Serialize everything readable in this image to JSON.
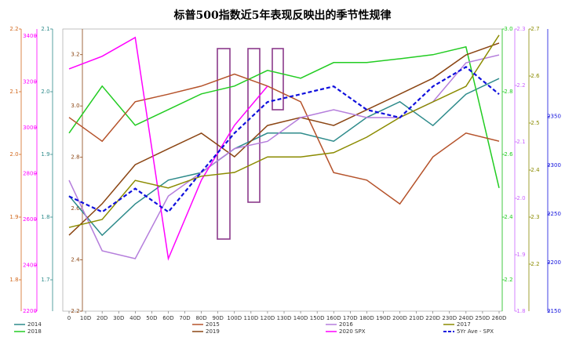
{
  "chart_data": {
    "type": "line",
    "title": "标普500指数近5年表现反映出的季节性规律",
    "x": [
      0,
      20,
      40,
      60,
      80,
      100,
      120,
      140,
      160,
      180,
      200,
      220,
      240,
      260
    ],
    "xlim": [
      0,
      260
    ],
    "xticks": [
      0,
      {
        "value": 10,
        "label": "10D"
      },
      {
        "value": 20,
        "label": "20D"
      },
      {
        "value": 30,
        "label": "30D"
      },
      {
        "value": 40,
        "label": "40D"
      },
      {
        "value": 50,
        "label": "50D"
      },
      {
        "value": 60,
        "label": "60D"
      },
      {
        "value": 70,
        "label": "70D"
      },
      {
        "value": 80,
        "label": "80D"
      },
      {
        "value": 90,
        "label": "90D"
      },
      {
        "value": 100,
        "label": "100D"
      },
      {
        "value": 110,
        "label": "110D"
      },
      {
        "value": 120,
        "label": "120D"
      },
      {
        "value": 130,
        "label": "130D"
      },
      {
        "value": 140,
        "label": "140D"
      },
      {
        "value": 150,
        "label": "150D"
      },
      {
        "value": 160,
        "label": "160D"
      },
      {
        "value": 170,
        "label": "170D"
      },
      {
        "value": 180,
        "label": "180D"
      },
      {
        "value": 190,
        "label": "190D"
      },
      {
        "value": 200,
        "label": "200D"
      },
      {
        "value": 210,
        "label": "210D"
      },
      {
        "value": 220,
        "label": "220D"
      },
      {
        "value": 230,
        "label": "230D"
      },
      {
        "value": 240,
        "label": "240D"
      },
      {
        "value": 250,
        "label": "250D"
      },
      {
        "value": 260,
        "label": "260D"
      }
    ],
    "axes": [
      {
        "side": "left",
        "color": "#d2691e",
        "ylim": [
          1.75,
          2.2
        ],
        "yticks": [
          1.8,
          1.9,
          {
            "value": 2,
            "label": "2.0"
          },
          2.1,
          2.2
        ]
      },
      {
        "side": "left",
        "color": "#ff00ff",
        "ylim": [
          2200,
          3430
        ],
        "yticks": [
          2200,
          2400,
          2600,
          2800,
          3000,
          3200,
          3400
        ]
      },
      {
        "side": "left",
        "color": "#2e8b8b",
        "ylim": [
          1.65,
          2.1
        ],
        "yticks": [
          1.7,
          1.8,
          1.9,
          {
            "value": 2,
            "label": "2.0"
          },
          2.1
        ]
      },
      {
        "side": "left",
        "color": "#8b4513",
        "ylim": [
          2.2,
          3.3
        ],
        "yticks": [
          2.2,
          2.4,
          2.6,
          2.8,
          {
            "value": 3,
            "label": "3.0"
          },
          3.2
        ]
      },
      {
        "side": "right",
        "color": "#22cc22",
        "ylim": [
          2.1,
          3.0
        ],
        "yticks": [
          2.2,
          2.4,
          2.6,
          2.8,
          {
            "value": 3,
            "label": "3.0"
          }
        ]
      },
      {
        "side": "right",
        "color": "#cc66ff",
        "ylim": [
          1.8,
          2.3
        ],
        "yticks": [
          1.8,
          1.9,
          {
            "value": 2,
            "label": "2.0"
          },
          2.1,
          2.2,
          2.3
        ]
      },
      {
        "side": "right",
        "color": "#8b8b00",
        "ylim": [
          2.1,
          2.7
        ],
        "yticks": [
          2.2,
          2.3,
          2.4,
          2.5,
          2.6,
          2.7
        ]
      },
      {
        "side": "right",
        "color": "#1010dd",
        "ylim": [
          2150,
          2440
        ],
        "yticks": [
          2150,
          2200,
          2250,
          2300,
          2350
        ]
      }
    ],
    "series": [
      {
        "name": "2014",
        "color": "#2e8b8b",
        "axis": 2,
        "values": [
          1.834,
          1.771,
          1.821,
          1.859,
          1.871,
          1.909,
          1.934,
          1.934,
          1.921,
          1.959,
          1.984,
          1.946,
          1.996,
          2.021
        ]
      },
      {
        "name": "2018",
        "color": "#22cc22",
        "axis": 4,
        "values": [
          2.668,
          2.818,
          2.693,
          2.743,
          2.793,
          2.818,
          2.868,
          2.843,
          2.893,
          2.893,
          2.905,
          2.918,
          2.943,
          2.493
        ]
      },
      {
        "name": "2015",
        "color": "#b5522a",
        "axis": 0,
        "values": [
          2.059,
          2.021,
          2.084,
          2.096,
          2.109,
          2.128,
          2.109,
          2.084,
          1.971,
          1.959,
          1.921,
          1.996,
          2.034,
          2.021
        ]
      },
      {
        "name": "2019",
        "color": "#8b4513",
        "axis": 3,
        "values": [
          2.496,
          2.619,
          2.771,
          2.833,
          2.894,
          2.802,
          2.924,
          2.955,
          2.924,
          2.985,
          3.046,
          3.108,
          3.199,
          3.245
        ]
      },
      {
        "name": "2016",
        "color": "#b57edc",
        "axis": 5,
        "values": [
          2.032,
          1.907,
          1.893,
          2.004,
          2.046,
          2.088,
          2.101,
          2.143,
          2.157,
          2.143,
          2.143,
          2.171,
          2.24,
          2.254
        ]
      },
      {
        "name": "2020 SPX",
        "color": "#ff00ff",
        "axis": 1,
        "values": [
          3256,
          3311,
          3393,
          2429,
          2771,
          3010,
          3181,
          null,
          null,
          null,
          null,
          null,
          null,
          null
        ]
      },
      {
        "name": "2017",
        "color": "#8b8b00",
        "axis": 6,
        "values": [
          2.278,
          2.295,
          2.378,
          2.362,
          2.387,
          2.395,
          2.428,
          2.428,
          2.437,
          2.47,
          2.512,
          2.545,
          2.578,
          2.687
        ]
      },
      {
        "name": "5Yr Ave - SPX",
        "color": "#1010dd",
        "axis": 7,
        "dashed": true,
        "values": [
          2268,
          2252,
          2276,
          2252,
          2293,
          2333,
          2365,
          2373,
          2381,
          2357,
          2349,
          2381,
          2401,
          2373
        ]
      }
    ]
  }
}
